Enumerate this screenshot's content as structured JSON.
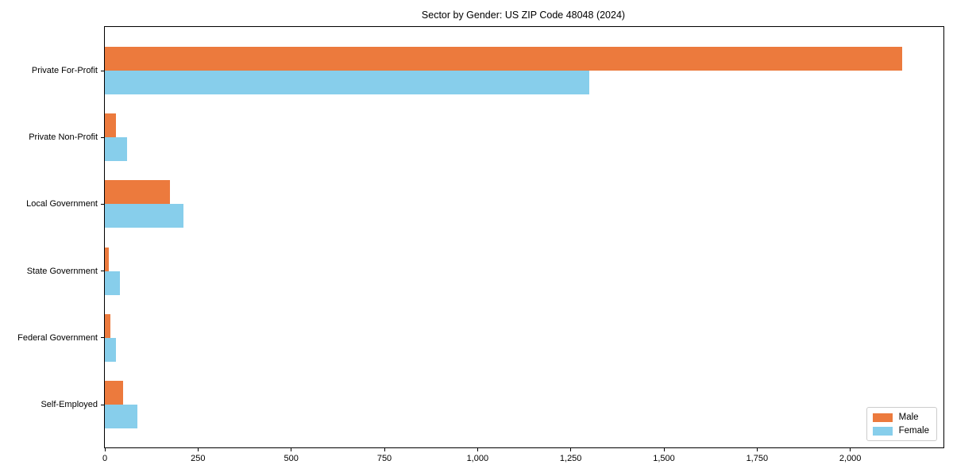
{
  "chart_data": {
    "type": "bar",
    "orientation": "horizontal",
    "title": "Sector by Gender: US ZIP Code 48048 (2024)",
    "categories": [
      "Private For-Profit",
      "Private Non-Profit",
      "Local Government",
      "State Government",
      "Federal Government",
      "Self-Employed"
    ],
    "series": [
      {
        "name": "Male",
        "color": "#ec7a3d",
        "values": [
          2140,
          30,
          175,
          10,
          15,
          50
        ]
      },
      {
        "name": "Female",
        "color": "#87ceeb",
        "values": [
          1300,
          60,
          210,
          40,
          30,
          88
        ]
      }
    ],
    "x_ticks": [
      0,
      250,
      500,
      750,
      1000,
      1250,
      1500,
      1750,
      2000
    ],
    "x_tick_labels": [
      "0",
      "250",
      "500",
      "750",
      "1,000",
      "1,250",
      "1,500",
      "1,750",
      "2,000"
    ],
    "xlim": [
      0,
      2250
    ],
    "grid": false,
    "legend_position": "lower right",
    "colors": {
      "male": "#ec7a3d",
      "female": "#87ceeb",
      "axis": "#000000",
      "legend_border": "#cccccc"
    }
  }
}
